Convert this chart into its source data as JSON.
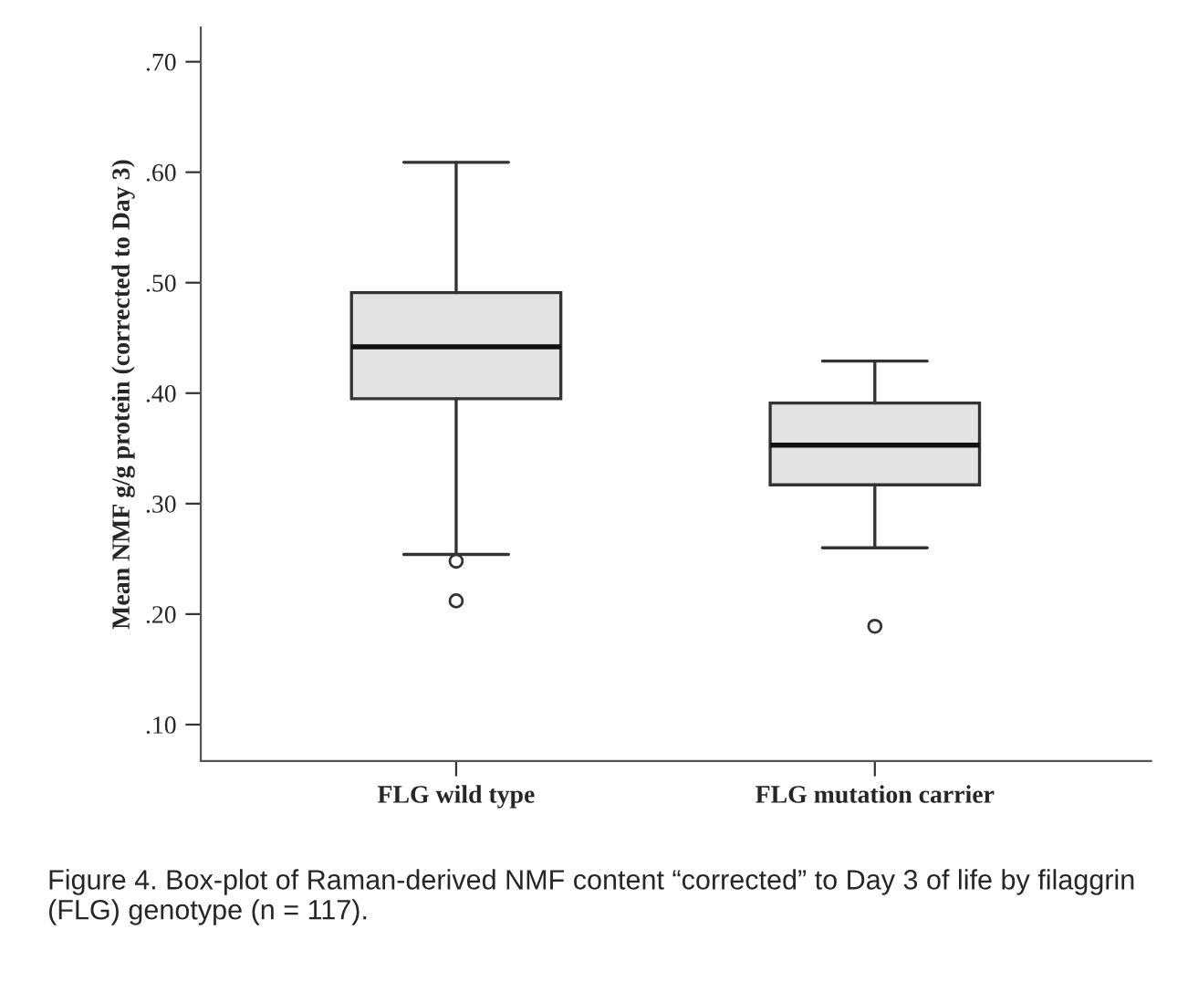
{
  "chart_data": {
    "type": "box",
    "ylabel": "Mean NMF g/g protein (corrected to Day 3)",
    "categories": [
      "FLG wild type",
      "FLG mutation carrier"
    ],
    "boxes": [
      {
        "low": 0.254,
        "q1": 0.395,
        "median": 0.442,
        "q3": 0.491,
        "high": 0.609,
        "outliers": [
          0.248,
          0.212
        ]
      },
      {
        "low": 0.26,
        "q1": 0.317,
        "median": 0.353,
        "q3": 0.391,
        "high": 0.429,
        "outliers": [
          0.189
        ]
      }
    ],
    "color": "#e3e3e3",
    "ylim": [
      0.067,
      0.731
    ],
    "yticks": [
      {
        "value": 0.1,
        "label": ".10"
      },
      {
        "value": 0.2,
        "label": ".20"
      },
      {
        "value": 0.3,
        "label": ".30"
      },
      {
        "value": 0.4,
        "label": ".40"
      },
      {
        "value": 0.5,
        "label": ".50"
      },
      {
        "value": 0.6,
        "label": ".60"
      },
      {
        "value": 0.7,
        "label": ".70"
      }
    ],
    "grid": false,
    "annotations": [
      "Figure 4. Box-plot of Raman-derived NMF content “corrected” to Day 3 of life by filaggrin (FLG) genotype (n = 117)."
    ]
  }
}
